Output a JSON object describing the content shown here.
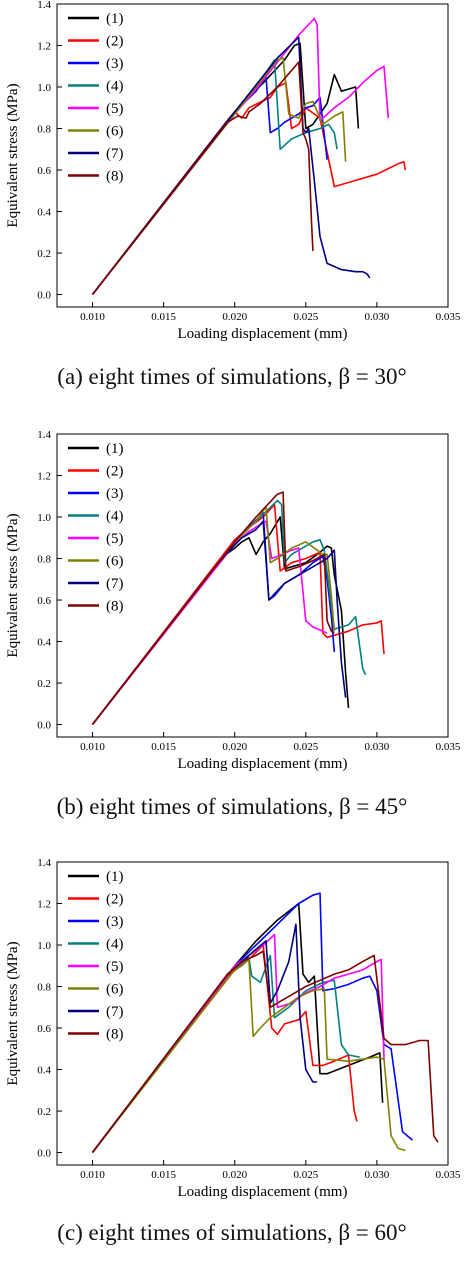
{
  "figure": {
    "captions": [
      "(a) eight times of simulations, β = 30°",
      "(b) eight times of simulations, β = 45°",
      "(c) eight times of simulations, β = 60°"
    ]
  },
  "series_colors": [
    "#000000",
    "#ff0000",
    "#0000ff",
    "#008080",
    "#ff00ff",
    "#808000",
    "#000080",
    "#800000"
  ],
  "chart_data": [
    {
      "type": "line",
      "xlabel": "Loading displacement (mm)",
      "ylabel": "Equivalent stress (MPa)",
      "xlim": [
        0.0075,
        0.035
      ],
      "ylim": [
        -0.06,
        1.4
      ],
      "xticks": [
        "0.010",
        "0.015",
        "0.020",
        "0.025",
        "0.030",
        "0.035"
      ],
      "yticks": [
        "0.0",
        "0.2",
        "0.4",
        "0.6",
        "0.8",
        "1.0",
        "1.2",
        "1.4"
      ],
      "legend_position": "top-left",
      "series": [
        {
          "name": "(1)",
          "x": [
            0.01,
            0.0195,
            0.0205,
            0.022,
            0.0235,
            0.0242,
            0.0246,
            0.025,
            0.0255,
            0.0265,
            0.027,
            0.0275,
            0.028,
            0.0285,
            0.0287
          ],
          "y": [
            0.0,
            0.84,
            0.92,
            1.02,
            1.13,
            1.2,
            1.21,
            0.8,
            0.82,
            0.92,
            1.06,
            0.98,
            0.99,
            1.0,
            0.8
          ]
        },
        {
          "name": "(2)",
          "x": [
            0.01,
            0.0195,
            0.02,
            0.0205,
            0.021,
            0.0225,
            0.023,
            0.0236,
            0.024,
            0.0245,
            0.025,
            0.026,
            0.027,
            0.0285,
            0.03,
            0.0315,
            0.0319,
            0.032
          ],
          "y": [
            0.0,
            0.84,
            0.88,
            0.85,
            0.9,
            0.95,
            1.0,
            1.02,
            0.8,
            0.82,
            0.9,
            0.85,
            0.52,
            0.55,
            0.58,
            0.63,
            0.64,
            0.6
          ]
        },
        {
          "name": "(3)",
          "x": [
            0.01,
            0.02,
            0.0215,
            0.0222,
            0.0225,
            0.023,
            0.0235,
            0.024,
            0.0245,
            0.025,
            0.0255,
            0.026,
            0.0265
          ],
          "y": [
            0.0,
            0.88,
            0.98,
            1.05,
            0.78,
            0.8,
            0.83,
            0.85,
            0.87,
            0.9,
            0.91,
            0.95,
            0.65
          ]
        },
        {
          "name": "(4)",
          "x": [
            0.01,
            0.02,
            0.0215,
            0.0228,
            0.0232,
            0.024,
            0.025,
            0.026,
            0.0266,
            0.027,
            0.0272
          ],
          "y": [
            0.0,
            0.88,
            1.0,
            1.13,
            0.7,
            0.75,
            0.78,
            0.8,
            0.82,
            0.78,
            0.7
          ]
        },
        {
          "name": "(5)",
          "x": [
            0.01,
            0.02,
            0.0215,
            0.023,
            0.0245,
            0.0256,
            0.0258,
            0.026,
            0.0262,
            0.027,
            0.028,
            0.029,
            0.03,
            0.0305,
            0.0308
          ],
          "y": [
            0.0,
            0.87,
            0.99,
            1.12,
            1.25,
            1.33,
            1.3,
            0.84,
            0.85,
            0.9,
            0.95,
            1.02,
            1.08,
            1.1,
            0.85
          ]
        },
        {
          "name": "(6)",
          "x": [
            0.01,
            0.02,
            0.0215,
            0.023,
            0.0234,
            0.0238,
            0.0245,
            0.025,
            0.0255,
            0.0262,
            0.027,
            0.0276,
            0.0278
          ],
          "y": [
            0.0,
            0.87,
            1.0,
            1.13,
            1.14,
            0.87,
            0.85,
            0.92,
            0.93,
            0.82,
            0.86,
            0.88,
            0.64
          ]
        },
        {
          "name": "(7)",
          "x": [
            0.01,
            0.02,
            0.0215,
            0.023,
            0.0245,
            0.0248,
            0.025,
            0.0252,
            0.0256,
            0.026,
            0.0265,
            0.0275,
            0.0285,
            0.029,
            0.0293,
            0.0295
          ],
          "y": [
            0.0,
            0.88,
            1.01,
            1.14,
            1.24,
            0.8,
            0.78,
            0.8,
            0.55,
            0.28,
            0.15,
            0.12,
            0.11,
            0.11,
            0.1,
            0.08
          ]
        },
        {
          "name": "(8)",
          "x": [
            0.01,
            0.0195,
            0.0202,
            0.0208,
            0.021,
            0.0218,
            0.023,
            0.024,
            0.0245,
            0.0248,
            0.025,
            0.0252,
            0.0254,
            0.0255
          ],
          "y": [
            0.0,
            0.83,
            0.86,
            0.85,
            0.88,
            0.92,
            1.0,
            1.08,
            1.12,
            0.78,
            0.75,
            0.7,
            0.35,
            0.21
          ]
        }
      ]
    },
    {
      "type": "line",
      "xlabel": "Loading displacement (mm)",
      "ylabel": "Equivalent stress (MPa)",
      "xlim": [
        0.0075,
        0.035
      ],
      "ylim": [
        -0.06,
        1.4
      ],
      "xticks": [
        "0.010",
        "0.015",
        "0.020",
        "0.025",
        "0.030",
        "0.035"
      ],
      "yticks": [
        "0.0",
        "0.2",
        "0.4",
        "0.6",
        "0.8",
        "1.0",
        "1.2",
        "1.4"
      ],
      "legend_position": "top-left",
      "series": [
        {
          "name": "(1)",
          "x": [
            0.01,
            0.019,
            0.02,
            0.0205,
            0.021,
            0.0215,
            0.022,
            0.0225,
            0.0232,
            0.0235,
            0.024,
            0.025,
            0.026,
            0.0265,
            0.0268,
            0.027,
            0.0275,
            0.0278,
            0.028
          ],
          "y": [
            0.0,
            0.8,
            0.85,
            0.88,
            0.9,
            0.82,
            0.88,
            0.92,
            1.0,
            0.75,
            0.76,
            0.78,
            0.83,
            0.86,
            0.85,
            0.72,
            0.55,
            0.25,
            0.08
          ]
        },
        {
          "name": "(2)",
          "x": [
            0.01,
            0.02,
            0.021,
            0.022,
            0.0228,
            0.0232,
            0.024,
            0.025,
            0.026,
            0.0262,
            0.0265,
            0.027,
            0.028,
            0.029,
            0.03,
            0.0303,
            0.0305
          ],
          "y": [
            0.0,
            0.89,
            0.95,
            1.0,
            1.06,
            0.74,
            0.78,
            0.8,
            0.83,
            0.44,
            0.42,
            0.43,
            0.45,
            0.48,
            0.49,
            0.5,
            0.34
          ]
        },
        {
          "name": "(3)",
          "x": [
            0.01,
            0.02,
            0.021,
            0.022,
            0.0224,
            0.0228,
            0.0235,
            0.0245,
            0.0255,
            0.0262,
            0.0265,
            0.0268,
            0.027
          ],
          "y": [
            0.0,
            0.88,
            0.95,
            1.02,
            0.6,
            0.62,
            0.68,
            0.72,
            0.78,
            0.81,
            0.7,
            0.52,
            0.35
          ]
        },
        {
          "name": "(4)",
          "x": [
            0.01,
            0.02,
            0.0215,
            0.023,
            0.0233,
            0.0235,
            0.024,
            0.025,
            0.0255,
            0.026,
            0.0263,
            0.027,
            0.028,
            0.0285,
            0.029,
            0.0292
          ],
          "y": [
            0.0,
            0.88,
            0.98,
            1.08,
            1.06,
            0.78,
            0.82,
            0.86,
            0.88,
            0.89,
            0.84,
            0.46,
            0.48,
            0.52,
            0.27,
            0.24
          ]
        },
        {
          "name": "(5)",
          "x": [
            0.01,
            0.02,
            0.021,
            0.0222,
            0.0226,
            0.023,
            0.024,
            0.0245,
            0.025,
            0.0255,
            0.0262,
            0.0265
          ],
          "y": [
            0.0,
            0.87,
            0.93,
            0.98,
            0.8,
            0.81,
            0.84,
            0.85,
            0.5,
            0.47,
            0.45,
            0.44
          ]
        },
        {
          "name": "(6)",
          "x": [
            0.01,
            0.02,
            0.0215,
            0.0222,
            0.0225,
            0.023,
            0.024,
            0.025,
            0.0258,
            0.0262,
            0.0265,
            0.0268,
            0.027
          ],
          "y": [
            0.0,
            0.88,
            0.98,
            1.05,
            0.78,
            0.8,
            0.85,
            0.88,
            0.84,
            0.82,
            0.82,
            0.62,
            0.45
          ]
        },
        {
          "name": "(7)",
          "x": [
            0.01,
            0.0185,
            0.0195,
            0.0205,
            0.0215,
            0.022,
            0.0224,
            0.0228,
            0.0235,
            0.0245,
            0.0255,
            0.0265,
            0.027,
            0.0272,
            0.0275,
            0.0278
          ],
          "y": [
            0.0,
            0.75,
            0.83,
            0.9,
            0.94,
            0.98,
            0.6,
            0.63,
            0.68,
            0.72,
            0.76,
            0.8,
            0.84,
            0.6,
            0.3,
            0.13
          ]
        },
        {
          "name": "(8)",
          "x": [
            0.01,
            0.02,
            0.0215,
            0.023,
            0.0234,
            0.0236,
            0.0245,
            0.0255,
            0.0263,
            0.0265,
            0.0268,
            0.027
          ],
          "y": [
            0.0,
            0.88,
            1.0,
            1.11,
            1.12,
            0.74,
            0.76,
            0.79,
            0.82,
            0.5,
            0.45,
            0.44
          ]
        }
      ]
    },
    {
      "type": "line",
      "xlabel": "Loading displacement (mm)",
      "ylabel": "Equivalent stress (MPa)",
      "xlim": [
        0.0075,
        0.035
      ],
      "ylim": [
        -0.06,
        1.4
      ],
      "xticks": [
        "0.010",
        "0.015",
        "0.020",
        "0.025",
        "0.030",
        "0.035"
      ],
      "yticks": [
        "0.0",
        "0.2",
        "0.4",
        "0.6",
        "0.8",
        "1.0",
        "1.2",
        "1.4"
      ],
      "legend_position": "top-left",
      "series": [
        {
          "name": "(1)",
          "x": [
            0.01,
            0.02,
            0.0215,
            0.023,
            0.0245,
            0.0248,
            0.0252,
            0.0256,
            0.026,
            0.0265,
            0.028,
            0.0295,
            0.0302,
            0.0304
          ],
          "y": [
            0.0,
            0.9,
            1.02,
            1.12,
            1.2,
            0.86,
            0.82,
            0.85,
            0.38,
            0.38,
            0.42,
            0.46,
            0.48,
            0.24
          ]
        },
        {
          "name": "(2)",
          "x": [
            0.01,
            0.0195,
            0.021,
            0.022,
            0.0226,
            0.023,
            0.0235,
            0.0245,
            0.025,
            0.0255,
            0.0262,
            0.027,
            0.028,
            0.0284,
            0.0286
          ],
          "y": [
            0.0,
            0.85,
            0.93,
            1.0,
            0.6,
            0.57,
            0.62,
            0.64,
            0.68,
            0.42,
            0.42,
            0.44,
            0.47,
            0.2,
            0.15
          ]
        },
        {
          "name": "(3)",
          "x": [
            0.01,
            0.02,
            0.0215,
            0.023,
            0.0245,
            0.0255,
            0.026,
            0.0262,
            0.027,
            0.028,
            0.029,
            0.0295,
            0.03,
            0.0305,
            0.031,
            0.0318,
            0.0325
          ],
          "y": [
            0.0,
            0.9,
            1.0,
            1.1,
            1.2,
            1.24,
            1.25,
            0.78,
            0.79,
            0.81,
            0.84,
            0.85,
            0.78,
            0.52,
            0.5,
            0.1,
            0.06
          ]
        },
        {
          "name": "(4)",
          "x": [
            0.01,
            0.0195,
            0.021,
            0.0212,
            0.0218,
            0.0225,
            0.0228,
            0.0238,
            0.025,
            0.0262,
            0.027,
            0.0275,
            0.028,
            0.0288
          ],
          "y": [
            0.0,
            0.86,
            0.94,
            0.85,
            0.82,
            0.95,
            0.65,
            0.7,
            0.78,
            0.82,
            0.83,
            0.52,
            0.47,
            0.46
          ]
        },
        {
          "name": "(5)",
          "x": [
            0.01,
            0.02,
            0.021,
            0.022,
            0.0228,
            0.023,
            0.024,
            0.025,
            0.026,
            0.027,
            0.028,
            0.029,
            0.03,
            0.0303,
            0.0305
          ],
          "y": [
            0.0,
            0.9,
            0.95,
            1.0,
            1.05,
            0.7,
            0.72,
            0.77,
            0.8,
            0.84,
            0.86,
            0.88,
            0.92,
            0.93,
            0.45
          ]
        },
        {
          "name": "(6)",
          "x": [
            0.01,
            0.02,
            0.0205,
            0.021,
            0.0213,
            0.0218,
            0.0225,
            0.0235,
            0.0245,
            0.0255,
            0.0263,
            0.0265,
            0.028,
            0.03,
            0.0305,
            0.031,
            0.0315,
            0.032
          ],
          "y": [
            0.0,
            0.88,
            0.9,
            0.93,
            0.56,
            0.6,
            0.65,
            0.7,
            0.75,
            0.78,
            0.79,
            0.45,
            0.44,
            0.46,
            0.45,
            0.08,
            0.02,
            0.01
          ]
        },
        {
          "name": "(7)",
          "x": [
            0.01,
            0.0195,
            0.0205,
            0.0215,
            0.0222,
            0.0225,
            0.023,
            0.0238,
            0.0243,
            0.0246,
            0.025,
            0.0255,
            0.0258
          ],
          "y": [
            0.0,
            0.86,
            0.92,
            0.98,
            1.02,
            0.72,
            0.78,
            0.92,
            1.1,
            0.65,
            0.4,
            0.34,
            0.34
          ]
        },
        {
          "name": "(8)",
          "x": [
            0.01,
            0.0195,
            0.0205,
            0.0215,
            0.022,
            0.0225,
            0.023,
            0.024,
            0.025,
            0.026,
            0.027,
            0.028,
            0.029,
            0.0298,
            0.0305,
            0.031,
            0.032,
            0.033,
            0.0336,
            0.034,
            0.0343
          ],
          "y": [
            0.0,
            0.86,
            0.92,
            0.95,
            0.97,
            0.7,
            0.72,
            0.76,
            0.8,
            0.83,
            0.86,
            0.88,
            0.92,
            0.95,
            0.55,
            0.52,
            0.52,
            0.54,
            0.54,
            0.08,
            0.05
          ]
        }
      ]
    }
  ]
}
